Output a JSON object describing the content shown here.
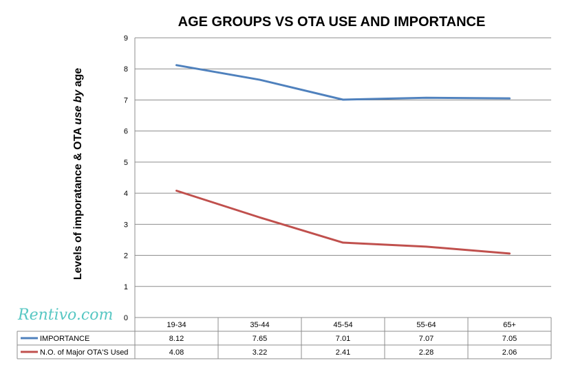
{
  "watermark": "Rentivo.com",
  "chart_data": {
    "type": "line",
    "title": "AGE GROUPS VS OTA USE AND IMPORTANCE",
    "ylabel_parts": [
      "Levels of imporatance & OTA ",
      "use by",
      " age"
    ],
    "xlabel": "",
    "ylim": [
      0,
      9
    ],
    "yticks": [
      0,
      1,
      2,
      3,
      4,
      5,
      6,
      7,
      8,
      9
    ],
    "grid": true,
    "legend": "data-table-below",
    "categories": [
      "19-34",
      "35-44",
      "45-54",
      "55-64",
      "65+"
    ],
    "series": [
      {
        "name": "IMPORTANCE",
        "color": "#4f81bd",
        "values": [
          8.12,
          7.65,
          7.01,
          7.07,
          7.05
        ],
        "labels": [
          "8.12",
          "7.65",
          "7.01",
          "7.07",
          "7.05"
        ]
      },
      {
        "name": "N.O. of Major OTA'S Used",
        "color": "#c0504d",
        "values": [
          4.08,
          3.22,
          2.41,
          2.28,
          2.06
        ],
        "labels": [
          "4.08",
          "3.22",
          "2.41",
          "2.28",
          "2.06"
        ]
      }
    ]
  }
}
